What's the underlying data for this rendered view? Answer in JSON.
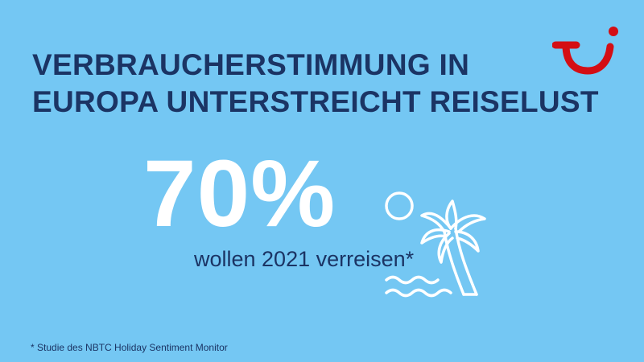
{
  "headline": {
    "line1": "VERBRAUCHERSTIMMUNG IN",
    "line2": "EUROPA UNTERSTREICHT REISELUST"
  },
  "stat": {
    "value": "70%",
    "caption": "wollen 2021 verreisen*"
  },
  "footnote": "* Studie des NBTC Holiday Sentiment Monitor",
  "colors": {
    "background": "#74c7f3",
    "text_dark": "#1b3464",
    "text_light": "#ffffff",
    "logo_red": "#d40e14"
  },
  "icons": [
    "tui-smile-logo",
    "sun-icon",
    "palm-tree-icon",
    "waves-icon"
  ]
}
